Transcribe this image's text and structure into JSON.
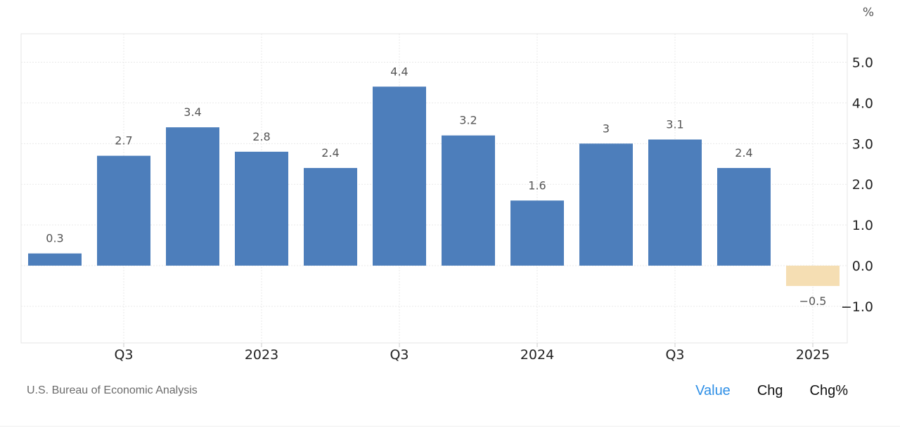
{
  "unit_label": "%",
  "source": "U.S. Bureau of Economic Analysis",
  "toggles": {
    "value": "Value",
    "chg": "Chg",
    "chg_pct": "Chg%"
  },
  "colors": {
    "positive": "#4d7ebb",
    "negative": "#f5deb3",
    "accent": "#2e8fe6"
  },
  "chart_data": {
    "type": "bar",
    "values": [
      0.3,
      2.7,
      3.4,
      2.8,
      2.4,
      4.4,
      3.2,
      1.6,
      3,
      3.1,
      2.4,
      -0.5
    ],
    "labels": [
      "0.3",
      "2.7",
      "3.4",
      "2.8",
      "2.4",
      "4.4",
      "3.2",
      "1.6",
      "3",
      "3.1",
      "2.4",
      "−0.5"
    ],
    "x_ticks": [
      {
        "label": "Q3",
        "bar": 1
      },
      {
        "label": "2023",
        "bar": 3
      },
      {
        "label": "Q3",
        "bar": 5
      },
      {
        "label": "2024",
        "bar": 7
      },
      {
        "label": "Q3",
        "bar": 9
      },
      {
        "label": "2025",
        "bar": 11
      }
    ],
    "y_ticks": [
      "5.0",
      "4.0",
      "3.0",
      "2.0",
      "1.0",
      "0.0",
      "−1.0"
    ],
    "ylim": [
      -1.9,
      5.7
    ],
    "grid": true,
    "axis_position": "right"
  }
}
